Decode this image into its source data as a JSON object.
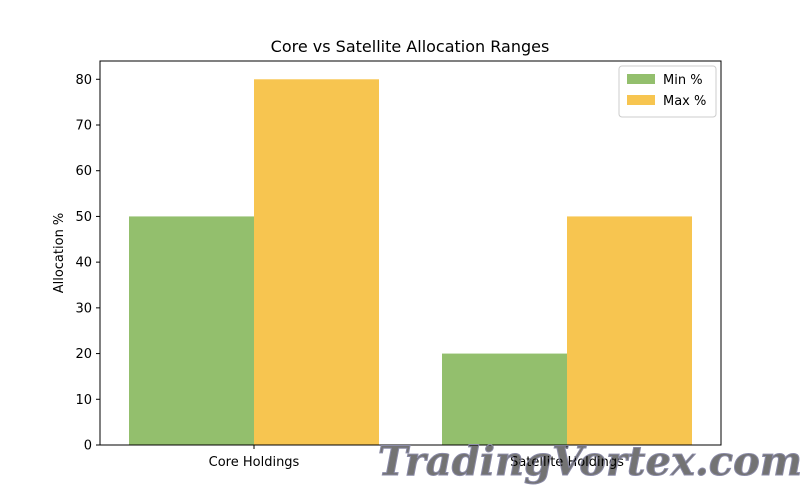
{
  "chart_data": {
    "type": "bar",
    "title": "Core vs Satellite Allocation Ranges",
    "xlabel": "",
    "ylabel": "Allocation %",
    "categories": [
      "Core Holdings",
      "Satellite Holdings"
    ],
    "series": [
      {
        "name": "Min %",
        "values": [
          50,
          20
        ],
        "color": "#93bf6d"
      },
      {
        "name": "Max %",
        "values": [
          80,
          50
        ],
        "color": "#f7c550"
      }
    ],
    "ylim": [
      0,
      84
    ],
    "yticks": [
      0,
      10,
      20,
      30,
      40,
      50,
      60,
      70,
      80
    ],
    "grid": false,
    "legend_position": "top-right"
  },
  "watermark": {
    "text": "TradingVortex.com"
  }
}
